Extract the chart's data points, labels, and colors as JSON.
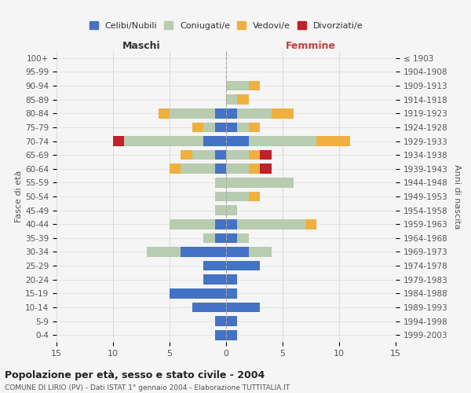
{
  "age_groups": [
    "0-4",
    "5-9",
    "10-14",
    "15-19",
    "20-24",
    "25-29",
    "30-34",
    "35-39",
    "40-44",
    "45-49",
    "50-54",
    "55-59",
    "60-64",
    "65-69",
    "70-74",
    "75-79",
    "80-84",
    "85-89",
    "90-94",
    "95-99",
    "100+"
  ],
  "birth_years": [
    "1999-2003",
    "1994-1998",
    "1989-1993",
    "1984-1988",
    "1979-1983",
    "1974-1978",
    "1969-1973",
    "1964-1968",
    "1959-1963",
    "1954-1958",
    "1949-1953",
    "1944-1948",
    "1939-1943",
    "1934-1938",
    "1929-1933",
    "1924-1928",
    "1919-1923",
    "1914-1918",
    "1909-1913",
    "1904-1908",
    "≤ 1903"
  ],
  "colors": {
    "celibi": "#4472C4",
    "coniugati": "#B8CCB0",
    "vedovi": "#F0B040",
    "divorziati": "#C0202A"
  },
  "maschi": {
    "celibi": [
      1,
      1,
      3,
      5,
      2,
      2,
      4,
      1,
      1,
      0,
      0,
      0,
      1,
      1,
      2,
      1,
      1,
      0,
      0,
      0,
      0
    ],
    "coniugati": [
      0,
      0,
      0,
      0,
      0,
      0,
      3,
      1,
      4,
      1,
      1,
      1,
      3,
      2,
      7,
      1,
      4,
      0,
      0,
      0,
      0
    ],
    "vedovi": [
      0,
      0,
      0,
      0,
      0,
      0,
      0,
      0,
      0,
      0,
      0,
      0,
      1,
      1,
      0,
      1,
      1,
      0,
      0,
      0,
      0
    ],
    "divorziati": [
      0,
      0,
      0,
      0,
      0,
      0,
      0,
      0,
      0,
      0,
      0,
      0,
      0,
      0,
      1,
      0,
      0,
      0,
      0,
      0,
      0
    ]
  },
  "femmine": {
    "celibi": [
      1,
      1,
      3,
      1,
      1,
      3,
      2,
      1,
      1,
      0,
      0,
      0,
      0,
      0,
      2,
      1,
      1,
      0,
      0,
      0,
      0
    ],
    "coniugati": [
      0,
      0,
      0,
      0,
      0,
      0,
      2,
      1,
      6,
      1,
      2,
      6,
      2,
      2,
      6,
      1,
      3,
      1,
      2,
      0,
      0
    ],
    "vedovi": [
      0,
      0,
      0,
      0,
      0,
      0,
      0,
      0,
      1,
      0,
      1,
      0,
      1,
      1,
      3,
      1,
      2,
      1,
      1,
      0,
      0
    ],
    "divorziati": [
      0,
      0,
      0,
      0,
      0,
      0,
      0,
      0,
      0,
      0,
      0,
      0,
      1,
      1,
      0,
      0,
      0,
      0,
      0,
      0,
      0
    ]
  },
  "title": "Popolazione per età, sesso e stato civile - 2004",
  "subtitle": "COMUNE DI LIRIO (PV) - Dati ISTAT 1° gennaio 2004 - Elaborazione TUTTITALIA.IT",
  "ylabel_left": "Fasce di età",
  "ylabel_right": "Anni di nascita",
  "xlabel_left": "Maschi",
  "xlabel_right": "Femmine",
  "xlim": 15,
  "bg_color": "#F5F5F5",
  "grid_color": "#DDDDDD",
  "legend_labels": [
    "Celibi/Nubili",
    "Coniugati/e",
    "Vedovi/e",
    "Divorziati/e"
  ]
}
